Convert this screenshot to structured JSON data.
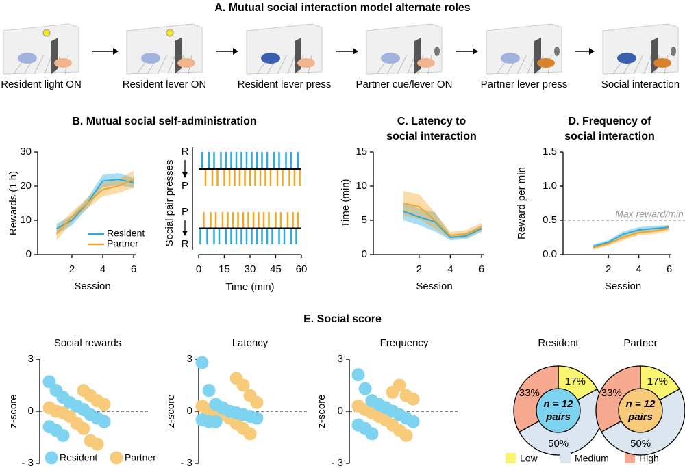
{
  "panel_a": {
    "title": "A. Mutual social interaction model alternate roles",
    "steps": [
      "Resident light ON",
      "Resident lever ON",
      "Resident lever press",
      "Partner cue/lever ON",
      "Partner lever press",
      "Social interaction"
    ]
  },
  "panel_e_title": "E. Social score",
  "chart_data": [
    {
      "type": "line",
      "title": [
        "B. Mutual social self-administration"
      ],
      "xlabel": "Session",
      "ylabel": "Rewards (1 h)",
      "x": [
        1,
        2,
        3,
        4,
        5,
        6
      ],
      "xlim": [
        1,
        6
      ],
      "xticks": [
        2,
        4,
        6
      ],
      "ylim": [
        0,
        30
      ],
      "yticks": [
        0,
        10,
        20,
        30
      ],
      "legend": "lower right",
      "series": [
        {
          "name": "Resident",
          "color": "#29abe2",
          "values": [
            7.5,
            10,
            15,
            21.5,
            22,
            21
          ],
          "error": [
            1.5,
            1.5,
            1.5,
            1.8,
            1.8,
            1.5
          ]
        },
        {
          "name": "Partner",
          "color": "#f5a623",
          "values": [
            6,
            11,
            15,
            19,
            20,
            22
          ],
          "error": [
            2,
            1.5,
            1.5,
            2,
            2,
            2.5
          ]
        }
      ]
    },
    {
      "type": "raster",
      "xlabel": "Time (min)",
      "ylabel": "Social pair presses",
      "xlim": [
        0,
        60
      ],
      "xticks": [
        0,
        15,
        30,
        45,
        60
      ],
      "panels": [
        {
          "top_label": "R",
          "bottom_label": "P",
          "top_color": "#29abe2",
          "bottom_color": "#f5a623",
          "top": [
            2,
            6,
            9,
            13,
            16,
            19,
            22,
            25,
            28,
            31,
            34,
            37,
            40,
            44,
            47,
            51,
            54,
            58
          ],
          "bottom": [
            4,
            8,
            11,
            15,
            18,
            21,
            24,
            27,
            30,
            33,
            36,
            39,
            42,
            46,
            49,
            53,
            56,
            59
          ]
        },
        {
          "top_label": "P",
          "bottom_label": "R",
          "top_color": "#f5a623",
          "bottom_color": "#29abe2",
          "top": [
            3,
            7,
            10,
            14,
            17,
            20,
            23,
            26,
            29,
            32,
            35,
            38,
            41,
            45,
            48,
            52,
            55,
            58
          ],
          "bottom": [
            1,
            5,
            9,
            12,
            16,
            19,
            22,
            25,
            28,
            31,
            34,
            37,
            40,
            43,
            47,
            50,
            54,
            57
          ]
        }
      ]
    },
    {
      "type": "line",
      "title": [
        "C. Latency to",
        "social interaction"
      ],
      "xlabel": "Session",
      "ylabel": "Time (min)",
      "x": [
        1,
        2,
        3,
        4,
        5,
        6
      ],
      "xlim": [
        1,
        6
      ],
      "xticks": [
        2,
        4,
        6
      ],
      "ylim": [
        0,
        15
      ],
      "yticks": [
        0,
        5,
        10,
        15
      ],
      "series": [
        {
          "name": "Resident",
          "color": "#29abe2",
          "values": [
            6.3,
            5.5,
            4.8,
            2.5,
            2.7,
            3.8
          ],
          "error": [
            1.3,
            1.2,
            1.4,
            0.4,
            0.5,
            0.5
          ]
        },
        {
          "name": "Partner",
          "color": "#f5a623",
          "values": [
            7.5,
            7,
            5,
            2.8,
            3,
            4
          ],
          "error": [
            1.8,
            1.8,
            1.2,
            0.5,
            0.6,
            0.6
          ]
        }
      ]
    },
    {
      "type": "line",
      "title": [
        "D. Frequency of",
        "social interaction"
      ],
      "xlabel": "Session",
      "ylabel": "Reward per min",
      "x": [
        1,
        2,
        3,
        4,
        5,
        6
      ],
      "xlim": [
        1,
        6
      ],
      "xticks": [
        2,
        4,
        6
      ],
      "ylim": [
        0,
        1.5
      ],
      "yticks": [
        {
          "value": 0,
          "label": "0.0"
        },
        0.5,
        {
          "value": 1,
          "label": "1.0"
        },
        1.5
      ],
      "reference": {
        "value": 0.5,
        "label": "Max reward/min"
      },
      "series": [
        {
          "name": "Resident",
          "color": "#29abe2",
          "values": [
            0.12,
            0.18,
            0.3,
            0.36,
            0.38,
            0.4
          ],
          "error": [
            0.03,
            0.03,
            0.04,
            0.04,
            0.04,
            0.03
          ]
        },
        {
          "name": "Partner",
          "color": "#f5a623",
          "values": [
            0.1,
            0.16,
            0.25,
            0.32,
            0.34,
            0.38
          ],
          "error": [
            0.03,
            0.03,
            0.04,
            0.04,
            0.04,
            0.04
          ]
        }
      ]
    },
    {
      "type": "scatter",
      "title": "Social rewards",
      "ylabel": "z-score",
      "ylim": [
        -3,
        3
      ],
      "yticks": [
        3,
        0,
        {
          "value": -3,
          "label": "- 3"
        }
      ],
      "legend": "bottom",
      "series": [
        {
          "name": "Resident",
          "color": "#7dd3f0",
          "values": [
            1.7,
            1.2,
            0.8,
            0.5,
            0.3,
            0.1,
            -0.2,
            -0.4,
            -0.6,
            -0.9,
            -1.1,
            -1.4
          ]
        },
        {
          "name": "Partner",
          "color": "#f8cb7a",
          "values": [
            1.2,
            0.9,
            0.6,
            0.4,
            0.2,
            0,
            -0.1,
            -0.3,
            -0.7,
            -1.0,
            -1.7,
            -1.9
          ]
        }
      ]
    },
    {
      "type": "scatter",
      "title": "Latency",
      "ylabel": "z-score",
      "ylim": [
        -3,
        3
      ],
      "yticks": [
        3,
        0,
        {
          "value": -3,
          "label": "- 3"
        }
      ],
      "series": [
        {
          "name": "Resident",
          "color": "#7dd3f0",
          "values": [
            2.8,
            1.2,
            0.4,
            0.2,
            0,
            -0.1,
            -0.2,
            -0.3,
            -0.4,
            -0.5,
            -0.6,
            -0.6
          ]
        },
        {
          "name": "Partner",
          "color": "#f8cb7a",
          "values": [
            1.9,
            1.5,
            0.9,
            0.5,
            0.3,
            0.1,
            0,
            -0.2,
            -0.4,
            -0.7,
            -1.0,
            -1.3
          ]
        }
      ]
    },
    {
      "type": "scatter",
      "title": "Frequency",
      "ylabel": "z-score",
      "ylim": [
        -3,
        3
      ],
      "yticks": [
        3,
        0,
        {
          "value": -3,
          "label": "- 3"
        }
      ],
      "series": [
        {
          "name": "Resident",
          "color": "#7dd3f0",
          "values": [
            2.1,
            1.3,
            0.6,
            0.4,
            0.2,
            0,
            -0.2,
            -0.4,
            -0.6,
            -0.8,
            -1.0,
            -1.3
          ]
        },
        {
          "name": "Partner",
          "color": "#f8cb7a",
          "values": [
            1.1,
            1.5,
            0.9,
            0.7,
            0.3,
            0.1,
            -0.1,
            -0.3,
            -0.5,
            -0.8,
            -1.1,
            -1.4
          ]
        }
      ]
    },
    {
      "type": "pie",
      "title": "Resident",
      "center": [
        "n = 12",
        "pairs"
      ],
      "center_color": "#7dd3f0",
      "legend": "bottom",
      "categories": [
        "Low",
        "Medium",
        "High"
      ],
      "colors": [
        "#faf56e",
        "#dce6f0",
        "#f6a98e"
      ],
      "values": [
        17,
        50,
        33
      ],
      "value_labels": [
        "17%",
        "50%",
        "33%"
      ]
    },
    {
      "type": "pie",
      "title": "Partner",
      "center": [
        "n = 12",
        "pairs"
      ],
      "center_color": "#f8cb7a",
      "categories": [
        "Low",
        "Medium",
        "High"
      ],
      "colors": [
        "#faf56e",
        "#dce6f0",
        "#f6a98e"
      ],
      "values": [
        17,
        50,
        33
      ],
      "value_labels": [
        "17%",
        "50%",
        "33%"
      ]
    }
  ]
}
